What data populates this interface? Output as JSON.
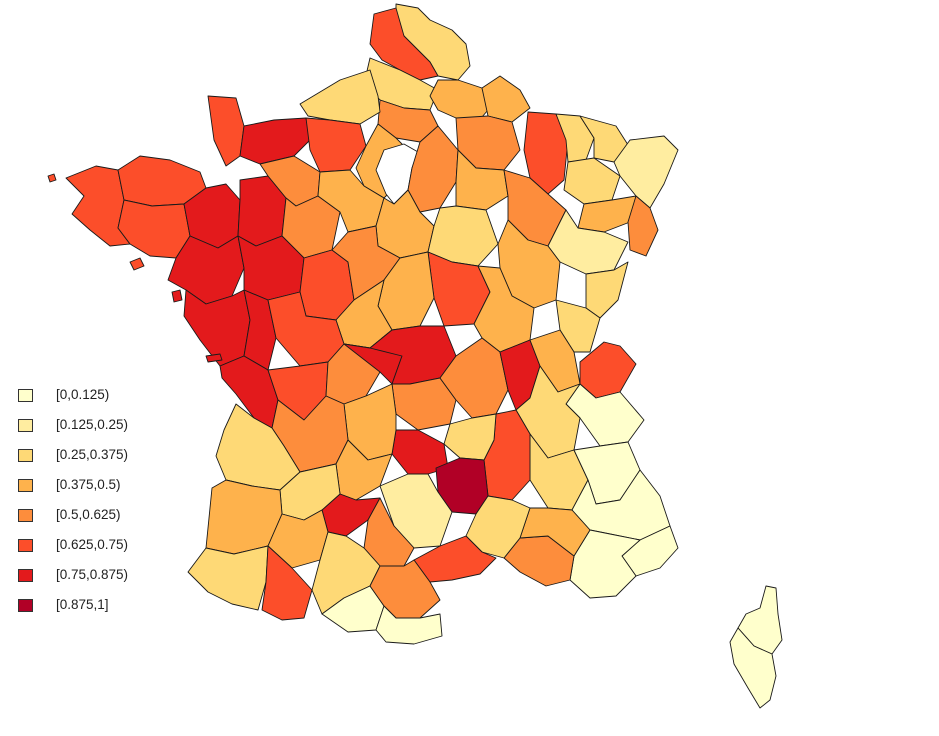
{
  "map": {
    "legend": [
      {
        "label": "[0,0.125)",
        "color": "#FFFFCC"
      },
      {
        "label": "[0.125,0.25)",
        "color": "#FFEDA0"
      },
      {
        "label": "[0.25,0.375)",
        "color": "#FED976"
      },
      {
        "label": "[0.375,0.5)",
        "color": "#FEB24C"
      },
      {
        "label": "[0.5,0.625)",
        "color": "#FD8D3C"
      },
      {
        "label": "[0.625,0.75)",
        "color": "#FC4E2A"
      },
      {
        "label": "[0.75,0.875)",
        "color": "#E31A1C"
      },
      {
        "label": "[0.875,1]",
        "color": "#B10026"
      }
    ]
  }
}
